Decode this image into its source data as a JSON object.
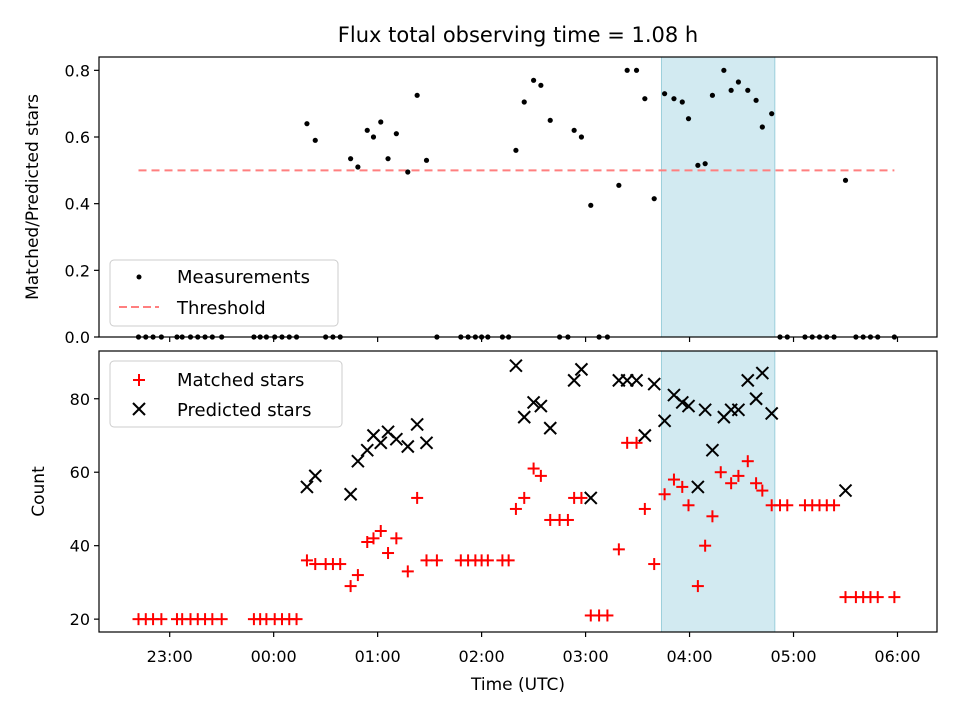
{
  "chart_data": {
    "type": "scatter",
    "title": "Flux total observing time = 1.08 h",
    "xlabel": "Time (UTC)",
    "x_unit": "hours relative to 00:00 UTC",
    "xlim": [
      -1.68,
      6.38
    ],
    "x_ticks": [
      {
        "value": -1,
        "label": "23:00"
      },
      {
        "value": 0,
        "label": "00:00"
      },
      {
        "value": 1,
        "label": "01:00"
      },
      {
        "value": 2,
        "label": "02:00"
      },
      {
        "value": 3,
        "label": "03:00"
      },
      {
        "value": 4,
        "label": "04:00"
      },
      {
        "value": 5,
        "label": "05:00"
      },
      {
        "value": 6,
        "label": "06:00"
      }
    ],
    "highlight_span": {
      "x_start": 3.73,
      "x_end": 4.82,
      "color": "#add8e6"
    },
    "top_panel": {
      "ylabel": "Matched/Predicted stars",
      "ylim": [
        0,
        0.84
      ],
      "y_ticks": [
        {
          "value": 0,
          "label": "0.0"
        },
        {
          "value": 0.2,
          "label": "0.2"
        },
        {
          "value": 0.4,
          "label": "0.4"
        },
        {
          "value": 0.6,
          "label": "0.6"
        },
        {
          "value": 0.8,
          "label": "0.8"
        }
      ],
      "threshold": {
        "value": 0.5,
        "x_start": -1.3,
        "x_end": 5.97,
        "color": "#ff7f7f"
      },
      "legend": {
        "location": "lower left",
        "entries": [
          "Measurements",
          "Threshold"
        ]
      },
      "series": [
        {
          "name": "Measurements",
          "marker": "dot",
          "color": "#000000",
          "points": [
            [
              -1.3,
              0
            ],
            [
              -1.23,
              0
            ],
            [
              -1.16,
              0
            ],
            [
              -1.08,
              0
            ],
            [
              -0.93,
              0
            ],
            [
              -0.88,
              0
            ],
            [
              -0.8,
              0
            ],
            [
              -0.73,
              0
            ],
            [
              -0.66,
              0
            ],
            [
              -0.59,
              0
            ],
            [
              -0.5,
              0
            ],
            [
              -0.19,
              0
            ],
            [
              -0.13,
              0
            ],
            [
              -0.07,
              0
            ],
            [
              0.01,
              0
            ],
            [
              0.08,
              0
            ],
            [
              0.15,
              0
            ],
            [
              0.22,
              0
            ],
            [
              0.32,
              0.64
            ],
            [
              0.4,
              0.59
            ],
            [
              0.5,
              0
            ],
            [
              0.57,
              0
            ],
            [
              0.64,
              0
            ],
            [
              0.74,
              0.535
            ],
            [
              0.81,
              0.51
            ],
            [
              0.9,
              0.62
            ],
            [
              0.96,
              0.6
            ],
            [
              1.03,
              0.645
            ],
            [
              1.1,
              0.535
            ],
            [
              1.18,
              0.61
            ],
            [
              1.29,
              0.495
            ],
            [
              1.38,
              0.725
            ],
            [
              1.47,
              0.53
            ],
            [
              1.57,
              0
            ],
            [
              1.8,
              0
            ],
            [
              1.87,
              0
            ],
            [
              1.94,
              0
            ],
            [
              2.0,
              0
            ],
            [
              2.06,
              0
            ],
            [
              2.2,
              0
            ],
            [
              2.26,
              0
            ],
            [
              2.33,
              0.56
            ],
            [
              2.41,
              0.705
            ],
            [
              2.5,
              0.77
            ],
            [
              2.57,
              0.755
            ],
            [
              2.66,
              0.65
            ],
            [
              2.75,
              0
            ],
            [
              2.83,
              0
            ],
            [
              2.89,
              0.62
            ],
            [
              2.96,
              0.6
            ],
            [
              3.05,
              0.395
            ],
            [
              3.13,
              0
            ],
            [
              3.21,
              0
            ],
            [
              3.32,
              0.455
            ],
            [
              3.4,
              0.8
            ],
            [
              3.49,
              0.8
            ],
            [
              3.57,
              0.715
            ],
            [
              3.66,
              0.415
            ],
            [
              3.76,
              0.73
            ],
            [
              3.85,
              0.715
            ],
            [
              3.93,
              0.705
            ],
            [
              3.99,
              0.655
            ],
            [
              4.08,
              0.515
            ],
            [
              4.15,
              0.52
            ],
            [
              4.22,
              0.725
            ],
            [
              4.33,
              0.8
            ],
            [
              4.4,
              0.74
            ],
            [
              4.47,
              0.765
            ],
            [
              4.56,
              0.74
            ],
            [
              4.64,
              0.71
            ],
            [
              4.7,
              0.63
            ],
            [
              4.79,
              0.67
            ],
            [
              4.87,
              0
            ],
            [
              4.94,
              0
            ],
            [
              5.11,
              0
            ],
            [
              5.18,
              0
            ],
            [
              5.25,
              0
            ],
            [
              5.32,
              0
            ],
            [
              5.39,
              0
            ],
            [
              5.5,
              0.47
            ],
            [
              5.6,
              0
            ],
            [
              5.67,
              0
            ],
            [
              5.74,
              0
            ],
            [
              5.81,
              0
            ],
            [
              5.97,
              0
            ]
          ]
        }
      ]
    },
    "bottom_panel": {
      "ylabel": "Count",
      "ylim": [
        16.5,
        93
      ],
      "y_ticks": [
        {
          "value": 20,
          "label": "20"
        },
        {
          "value": 40,
          "label": "40"
        },
        {
          "value": 60,
          "label": "60"
        },
        {
          "value": 80,
          "label": "80"
        }
      ],
      "legend": {
        "location": "upper left",
        "entries": [
          "Matched stars",
          "Predicted stars"
        ]
      },
      "series": [
        {
          "name": "Matched stars",
          "marker": "plus",
          "color": "#ff0000",
          "points": [
            [
              -1.3,
              20
            ],
            [
              -1.23,
              20
            ],
            [
              -1.16,
              20
            ],
            [
              -1.08,
              20
            ],
            [
              -0.93,
              20
            ],
            [
              -0.88,
              20
            ],
            [
              -0.8,
              20
            ],
            [
              -0.73,
              20
            ],
            [
              -0.66,
              20
            ],
            [
              -0.59,
              20
            ],
            [
              -0.5,
              20
            ],
            [
              -0.19,
              20
            ],
            [
              -0.13,
              20
            ],
            [
              -0.07,
              20
            ],
            [
              0.01,
              20
            ],
            [
              0.08,
              20
            ],
            [
              0.15,
              20
            ],
            [
              0.22,
              20
            ],
            [
              0.32,
              36
            ],
            [
              0.4,
              35
            ],
            [
              0.5,
              35
            ],
            [
              0.57,
              35
            ],
            [
              0.64,
              35
            ],
            [
              0.74,
              29
            ],
            [
              0.81,
              32
            ],
            [
              0.9,
              41
            ],
            [
              0.96,
              42
            ],
            [
              1.03,
              44
            ],
            [
              1.1,
              38
            ],
            [
              1.18,
              42
            ],
            [
              1.29,
              33
            ],
            [
              1.38,
              53
            ],
            [
              1.47,
              36
            ],
            [
              1.57,
              36
            ],
            [
              1.8,
              36
            ],
            [
              1.87,
              36
            ],
            [
              1.94,
              36
            ],
            [
              2.0,
              36
            ],
            [
              2.06,
              36
            ],
            [
              2.2,
              36
            ],
            [
              2.26,
              36
            ],
            [
              2.33,
              50
            ],
            [
              2.41,
              53
            ],
            [
              2.5,
              61
            ],
            [
              2.57,
              59
            ],
            [
              2.66,
              47
            ],
            [
              2.75,
              47
            ],
            [
              2.83,
              47
            ],
            [
              2.89,
              53
            ],
            [
              2.96,
              53
            ],
            [
              3.05,
              21
            ],
            [
              3.13,
              21
            ],
            [
              3.21,
              21
            ],
            [
              3.32,
              39
            ],
            [
              3.4,
              68
            ],
            [
              3.49,
              68
            ],
            [
              3.57,
              50
            ],
            [
              3.66,
              35
            ],
            [
              3.76,
              54
            ],
            [
              3.85,
              58
            ],
            [
              3.93,
              56
            ],
            [
              3.99,
              51
            ],
            [
              4.08,
              29
            ],
            [
              4.15,
              40
            ],
            [
              4.22,
              48
            ],
            [
              4.3,
              60
            ],
            [
              4.4,
              57
            ],
            [
              4.47,
              59
            ],
            [
              4.56,
              63
            ],
            [
              4.64,
              57
            ],
            [
              4.7,
              55
            ],
            [
              4.79,
              51
            ],
            [
              4.87,
              51
            ],
            [
              4.94,
              51
            ],
            [
              5.11,
              51
            ],
            [
              5.18,
              51
            ],
            [
              5.25,
              51
            ],
            [
              5.32,
              51
            ],
            [
              5.39,
              51
            ],
            [
              5.5,
              26
            ],
            [
              5.6,
              26
            ],
            [
              5.67,
              26
            ],
            [
              5.74,
              26
            ],
            [
              5.81,
              26
            ],
            [
              5.97,
              26
            ]
          ]
        },
        {
          "name": "Predicted stars",
          "marker": "x",
          "color": "#000000",
          "points": [
            [
              0.32,
              56
            ],
            [
              0.4,
              59
            ],
            [
              0.74,
              54
            ],
            [
              0.81,
              63
            ],
            [
              0.9,
              66
            ],
            [
              0.96,
              70
            ],
            [
              1.03,
              68
            ],
            [
              1.1,
              71
            ],
            [
              1.18,
              69
            ],
            [
              1.29,
              67
            ],
            [
              1.38,
              73
            ],
            [
              1.47,
              68
            ],
            [
              2.33,
              89
            ],
            [
              2.41,
              75
            ],
            [
              2.5,
              79
            ],
            [
              2.57,
              78
            ],
            [
              2.66,
              72
            ],
            [
              2.89,
              85
            ],
            [
              2.96,
              88
            ],
            [
              3.05,
              53
            ],
            [
              3.32,
              85
            ],
            [
              3.4,
              85
            ],
            [
              3.49,
              85
            ],
            [
              3.57,
              70
            ],
            [
              3.66,
              84
            ],
            [
              3.76,
              74
            ],
            [
              3.85,
              81
            ],
            [
              3.93,
              79
            ],
            [
              3.99,
              78
            ],
            [
              4.08,
              56
            ],
            [
              4.15,
              77
            ],
            [
              4.22,
              66
            ],
            [
              4.33,
              75
            ],
            [
              4.4,
              77
            ],
            [
              4.47,
              77
            ],
            [
              4.56,
              85
            ],
            [
              4.64,
              80
            ],
            [
              4.7,
              87
            ],
            [
              4.79,
              76
            ],
            [
              5.5,
              55
            ]
          ]
        }
      ]
    }
  }
}
